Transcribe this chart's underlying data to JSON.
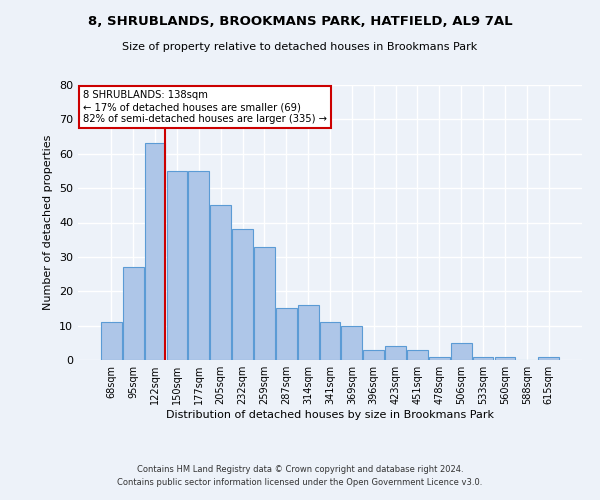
{
  "title1": "8, SHRUBLANDS, BROOKMANS PARK, HATFIELD, AL9 7AL",
  "title2": "Size of property relative to detached houses in Brookmans Park",
  "xlabel": "Distribution of detached houses by size in Brookmans Park",
  "ylabel": "Number of detached properties",
  "categories": [
    "68sqm",
    "95sqm",
    "122sqm",
    "150sqm",
    "177sqm",
    "205sqm",
    "232sqm",
    "259sqm",
    "287sqm",
    "314sqm",
    "341sqm",
    "369sqm",
    "396sqm",
    "423sqm",
    "451sqm",
    "478sqm",
    "506sqm",
    "533sqm",
    "560sqm",
    "588sqm",
    "615sqm"
  ],
  "values": [
    11,
    27,
    63,
    55,
    55,
    45,
    38,
    33,
    15,
    16,
    11,
    10,
    3,
    4,
    3,
    1,
    5,
    1,
    1,
    0,
    1
  ],
  "bar_color": "#aec6e8",
  "bar_edge_color": "#5b9bd5",
  "annotation_line1": "8 SHRUBLANDS: 138sqm",
  "annotation_line2": "← 17% of detached houses are smaller (69)",
  "annotation_line3": "82% of semi-detached houses are larger (335) →",
  "annotation_box_color": "#ffffff",
  "annotation_box_edge_color": "#cc0000",
  "ref_line_color": "#cc0000",
  "ylim": [
    0,
    80
  ],
  "yticks": [
    0,
    10,
    20,
    30,
    40,
    50,
    60,
    70,
    80
  ],
  "footer1": "Contains HM Land Registry data © Crown copyright and database right 2024.",
  "footer2": "Contains public sector information licensed under the Open Government Licence v3.0.",
  "bg_color": "#edf2f9",
  "plot_bg_color": "#edf2f9",
  "grid_color": "#ffffff"
}
